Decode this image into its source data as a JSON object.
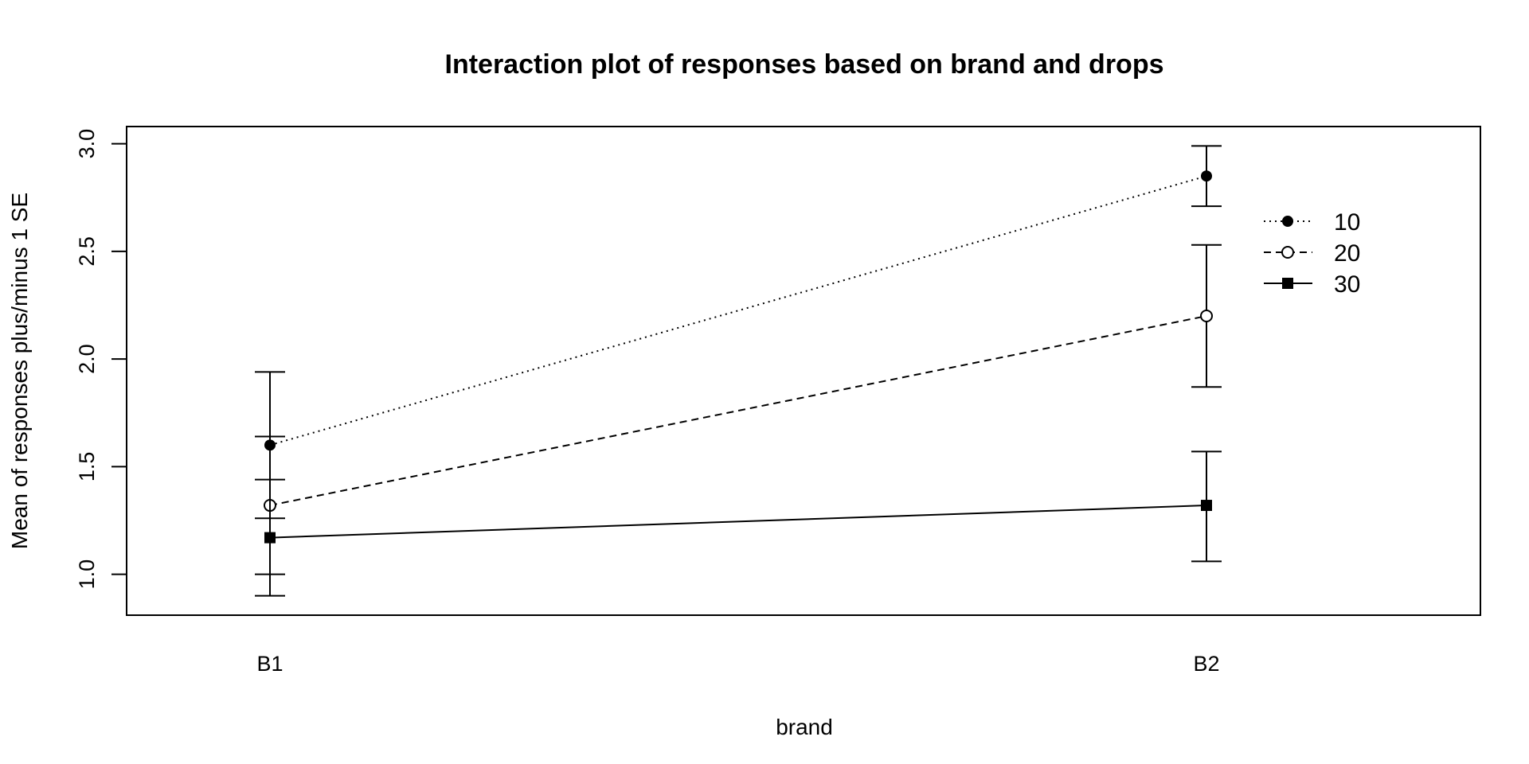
{
  "chart_data": {
    "type": "line",
    "title": "Interaction plot of responses based on brand and drops",
    "xlabel": "brand",
    "ylabel": "Mean of  responses plus/minus 1 SE",
    "categories": [
      "B1",
      "B2"
    ],
    "ylim": [
      0.81,
      3.08
    ],
    "yticks": [
      1.0,
      1.5,
      2.0,
      2.5,
      3.0
    ],
    "ytick_labels": [
      "1.0",
      "1.5",
      "2.0",
      "2.5",
      "3.0"
    ],
    "grid": false,
    "legend_position": "top-right",
    "series": [
      {
        "name": "10",
        "line_style": "dotted",
        "marker": "filled-circle",
        "values": [
          1.6,
          2.85
        ],
        "se_lower": [
          1.26,
          2.71
        ],
        "se_upper": [
          1.94,
          2.99
        ]
      },
      {
        "name": "20",
        "line_style": "dashed",
        "marker": "open-circle",
        "values": [
          1.32,
          2.2
        ],
        "se_lower": [
          1.0,
          1.87
        ],
        "se_upper": [
          1.64,
          2.53
        ]
      },
      {
        "name": "30",
        "line_style": "solid",
        "marker": "filled-square",
        "values": [
          1.17,
          1.32
        ],
        "se_lower": [
          0.9,
          1.06
        ],
        "se_upper": [
          1.44,
          1.57
        ]
      }
    ]
  }
}
